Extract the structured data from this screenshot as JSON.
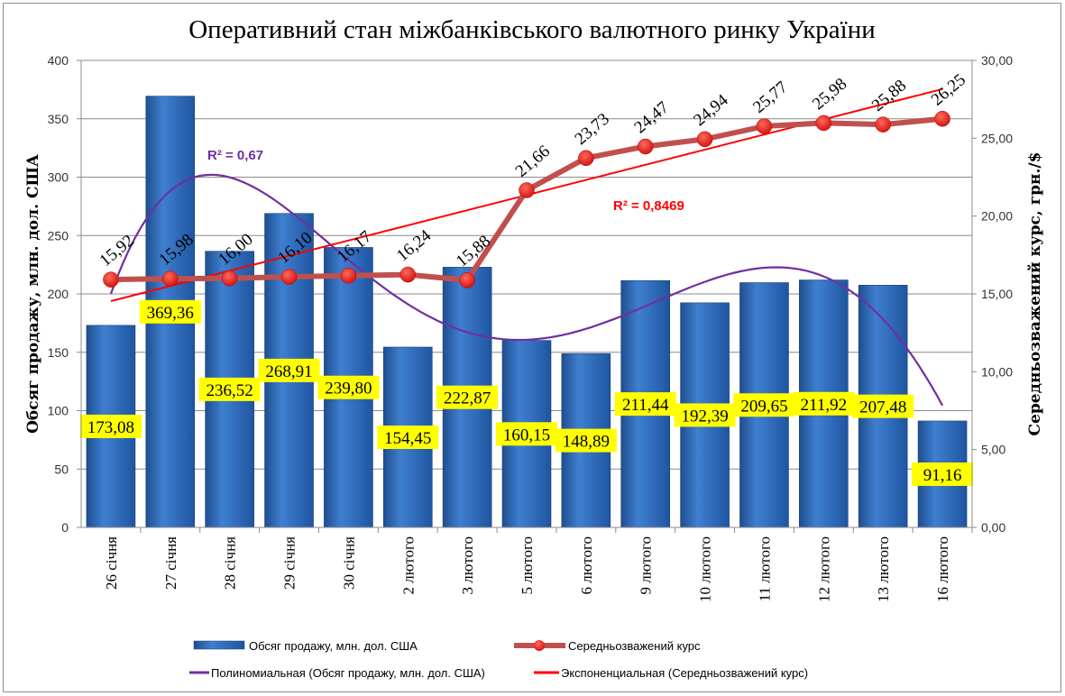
{
  "chart_data": {
    "type": "bar+line",
    "title": "Оперативний стан міжбанківського валютного ринку України",
    "categories": [
      "26 січня",
      "27 січня",
      "28 січня",
      "29 січня",
      "30 січня",
      "2 лютого",
      "3 лютого",
      "5 лютого",
      "6 лютого",
      "9 лютого",
      "10 лютого",
      "11 лютого",
      "12 лютого",
      "13 лютого",
      "16 лютого"
    ],
    "series": [
      {
        "name": "Обсяг продажу, млн. дол. США",
        "type": "bar",
        "axis": "left",
        "color": "#2e6fc4",
        "values": [
          173.08,
          369.36,
          236.52,
          268.91,
          239.8,
          154.45,
          222.87,
          160.15,
          148.89,
          211.44,
          192.39,
          209.65,
          211.92,
          207.48,
          91.16
        ],
        "labels": [
          "173,08",
          "369,36",
          "236,52",
          "268,91",
          "239,80",
          "154,45",
          "222,87",
          "160,15",
          "148,89",
          "211,44",
          "192,39",
          "209,65",
          "211,92",
          "207,48",
          "91,16"
        ]
      },
      {
        "name": "Середньозважений курс",
        "type": "line",
        "axis": "right",
        "color": "#c0504d",
        "values": [
          15.92,
          15.98,
          16.0,
          16.1,
          16.17,
          16.24,
          15.88,
          21.66,
          23.73,
          24.47,
          24.94,
          25.77,
          25.98,
          25.88,
          26.25
        ],
        "labels": [
          "15,92",
          "15,98",
          "16,00",
          "16,10",
          "16,17",
          "16,24",
          "15,88",
          "21,66",
          "23,73",
          "24,47",
          "24,94",
          "25,77",
          "25,98",
          "25,88",
          "26,25"
        ]
      }
    ],
    "trendlines": [
      {
        "name": "Полиномиальная (Обсяг продажу, млн. дол. США)",
        "type": "polynomial",
        "of": 0,
        "color": "#7030a0",
        "r2_label": "R² = 0,67"
      },
      {
        "name": "Экспоненциальная (Середньозважений курс)",
        "type": "exponential",
        "of": 1,
        "color": "#ff0000",
        "r2_label": "R² = 0,8469"
      }
    ],
    "ylabel": "Обсяг продажу, млн. дол. США",
    "y2label": "Середньозважений курс, грн./$",
    "ylim": [
      0,
      400
    ],
    "y2lim": [
      0,
      30
    ],
    "yticks": [
      "0",
      "50",
      "100",
      "150",
      "200",
      "250",
      "300",
      "350",
      "400"
    ],
    "y2ticks": [
      "0,00",
      "5,00",
      "10,00",
      "15,00",
      "20,00",
      "25,00",
      "30,00"
    ],
    "grid": true,
    "legend_position": "bottom"
  }
}
